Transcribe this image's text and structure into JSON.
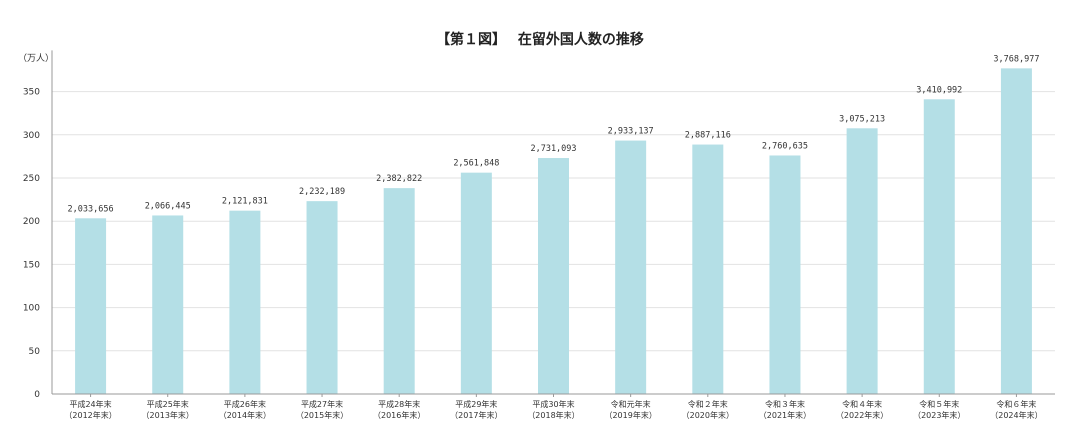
{
  "chart_data": {
    "type": "bar",
    "title": "【第１図】　 在留外国人数の推移",
    "ylabel": "（万人）",
    "xlabel": "",
    "ylim": [
      0,
      400
    ],
    "yticks": [
      0,
      50,
      100,
      150,
      200,
      250,
      300,
      350
    ],
    "grid": true,
    "categories": [
      [
        "平成24年末",
        "（2012年末）"
      ],
      [
        "平成25年末",
        "（2013年末）"
      ],
      [
        "平成26年末",
        "（2014年末）"
      ],
      [
        "平成27年末",
        "（2015年末）"
      ],
      [
        "平成28年末",
        "（2016年末）"
      ],
      [
        "平成29年末",
        "（2017年末）"
      ],
      [
        "平成30年末",
        "（2018年末）"
      ],
      [
        "令和元年末",
        "（2019年末）"
      ],
      [
        "令和２年末",
        "（2020年末）"
      ],
      [
        "令和３年末",
        "（2021年末）"
      ],
      [
        "令和４年末",
        "（2022年末）"
      ],
      [
        "令和５年末",
        "（2023年末）"
      ],
      [
        "令和６年末",
        "（2024年末）"
      ]
    ],
    "values": [
      2033656,
      2066445,
      2121831,
      2232189,
      2382822,
      2561848,
      2731093,
      2933137,
      2887116,
      2760635,
      3075213,
      3410992,
      3768977
    ],
    "data_labels": [
      "2,033,656",
      "2,066,445",
      "2,121,831",
      "2,232,189",
      "2,382,822",
      "2,561,848",
      "2,731,093",
      "2,933,137",
      "2,887,116",
      "2,760,635",
      "3,075,213",
      "3,410,992",
      "3,768,977"
    ],
    "colors": {
      "bar": "#b4dfe6",
      "grid": "#e2e2e2",
      "axis": "#999999"
    }
  }
}
